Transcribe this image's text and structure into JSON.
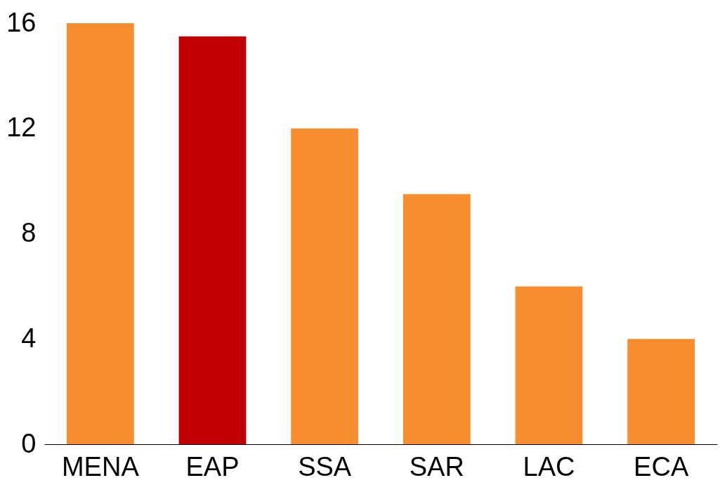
{
  "chart_data": {
    "type": "bar",
    "categories": [
      "MENA",
      "EAP",
      "SSA",
      "SAR",
      "LAC",
      "ECA"
    ],
    "values": [
      16,
      15.5,
      12,
      9.5,
      6,
      4
    ],
    "colors": [
      "#f68e2f",
      "#c00000",
      "#f68e2f",
      "#f68e2f",
      "#f68e2f",
      "#f68e2f"
    ],
    "ylim": [
      0,
      16
    ],
    "yticks": [
      0,
      4,
      8,
      12,
      16
    ]
  }
}
